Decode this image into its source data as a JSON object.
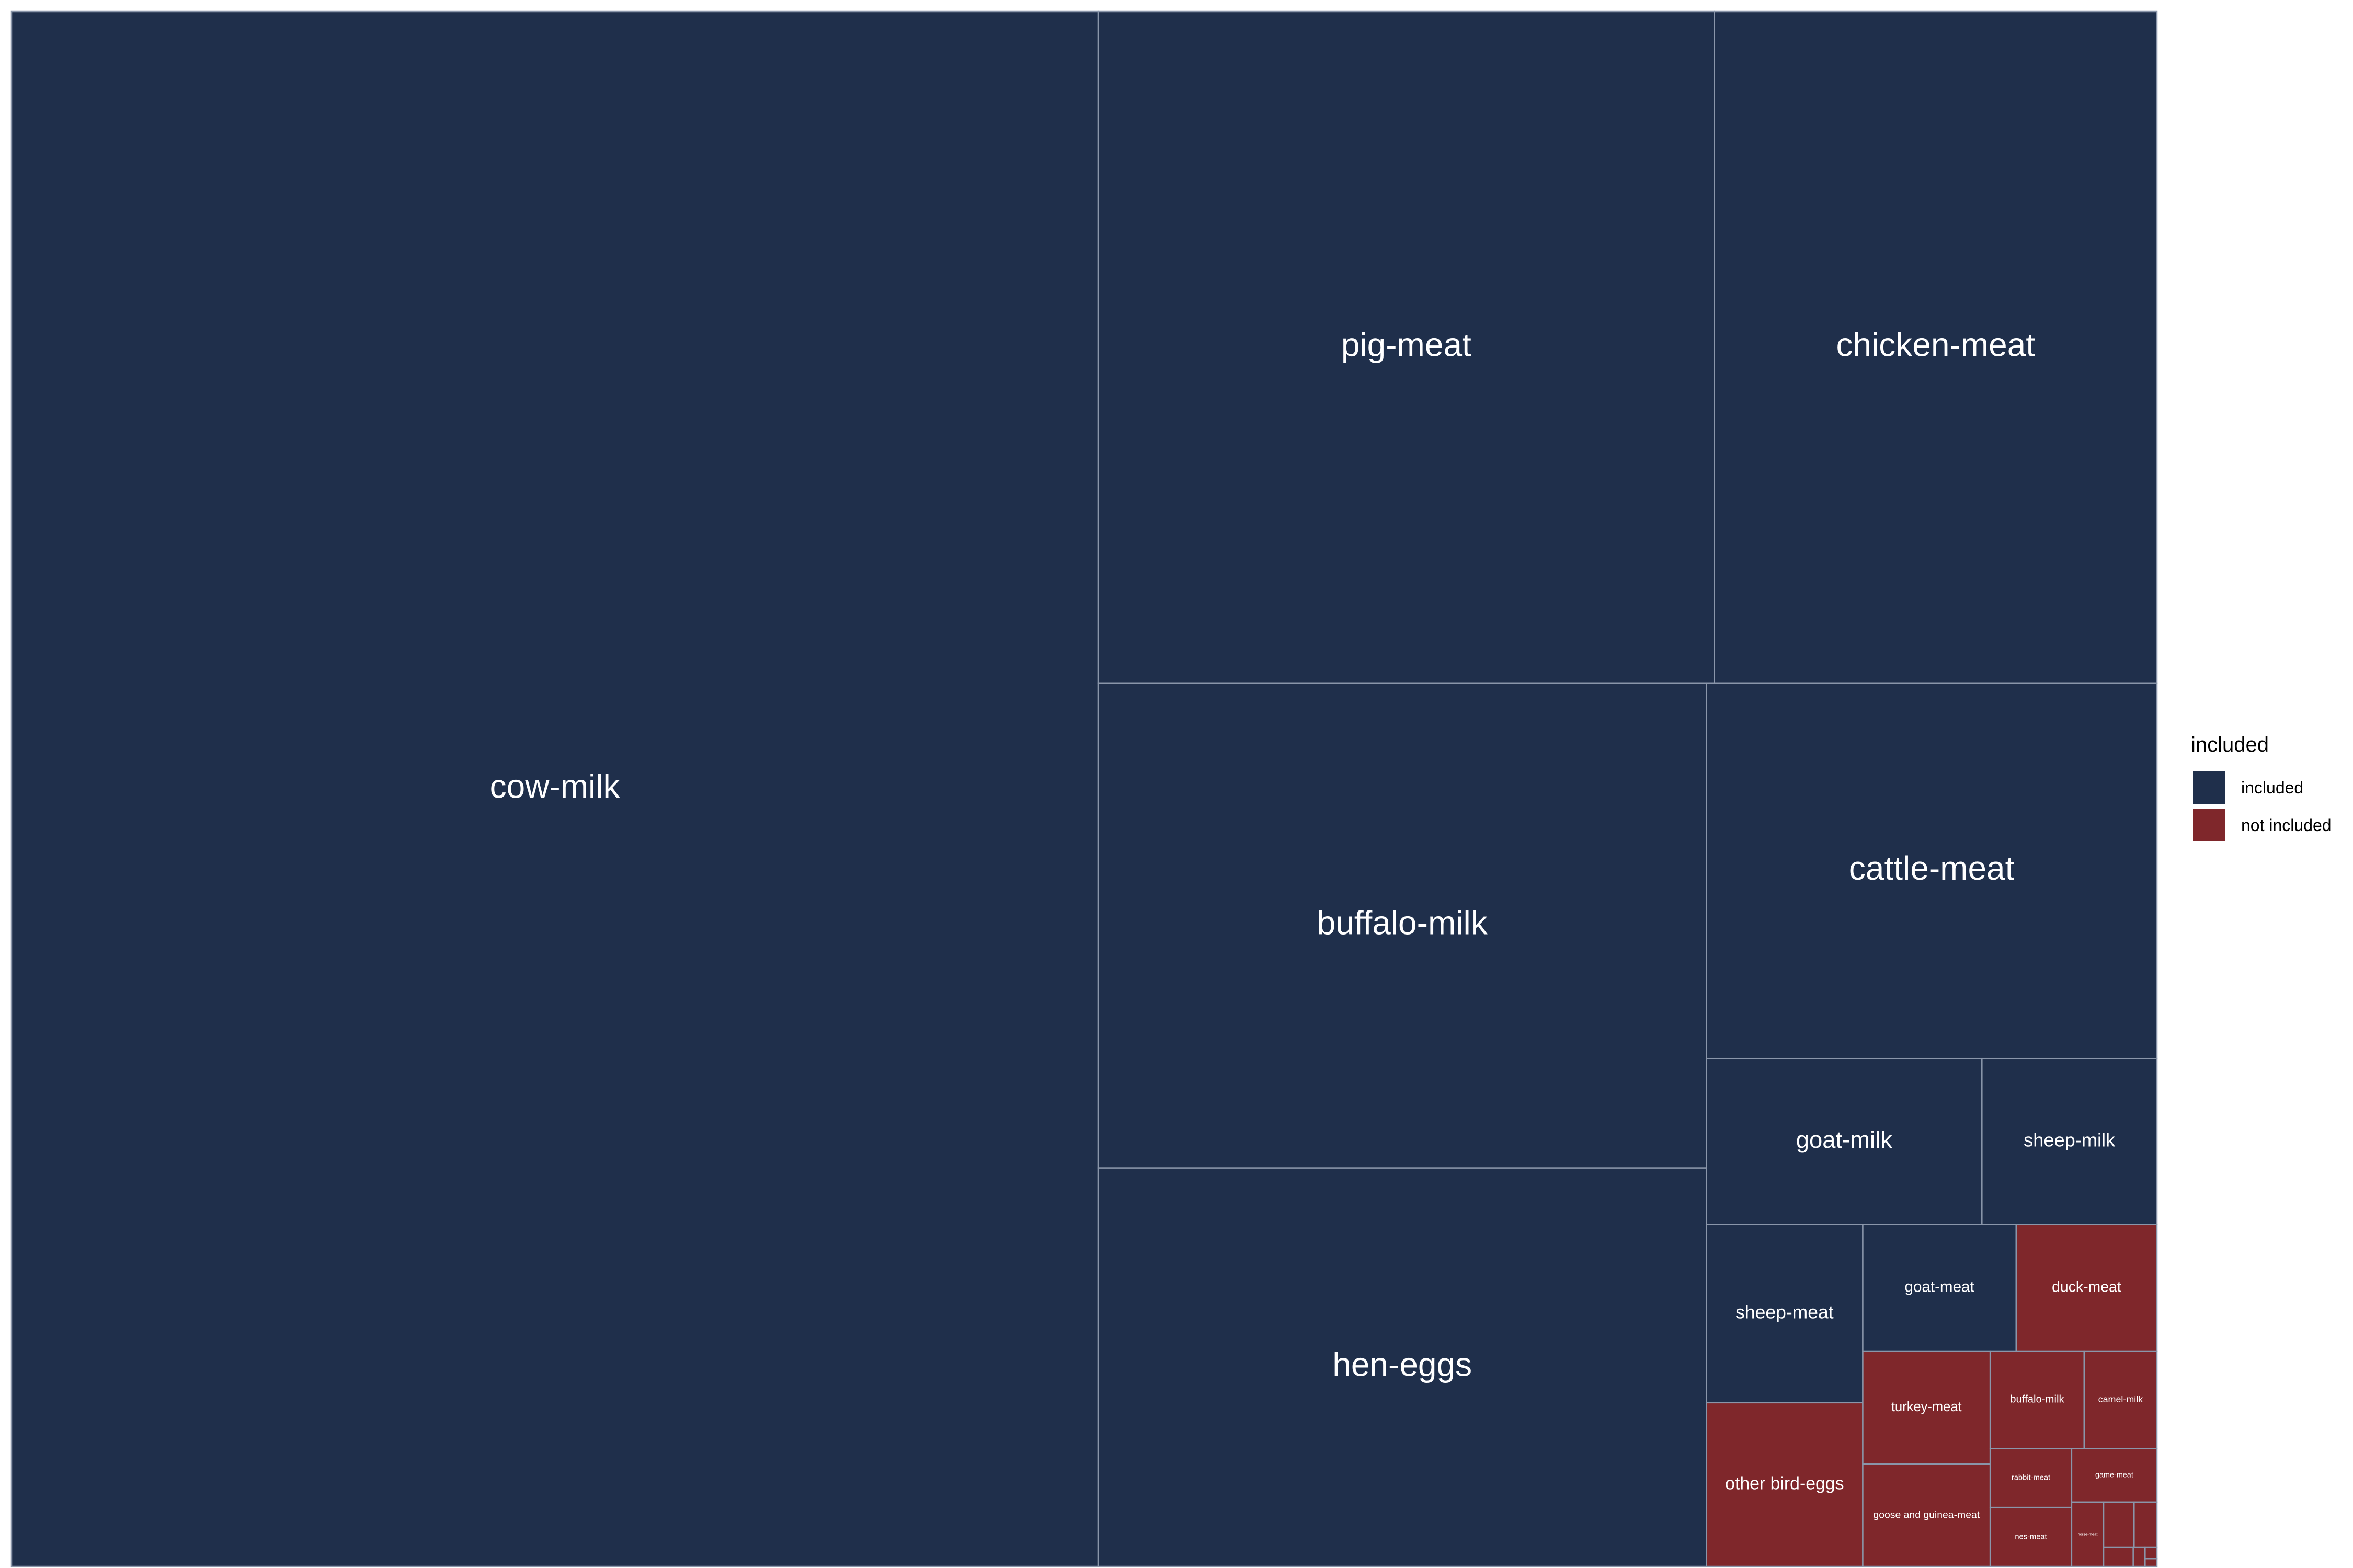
{
  "chart_data": {
    "type": "treemap",
    "title": "",
    "colors": {
      "included": "#1f2f4b",
      "not included": "#7f272b",
      "border": "#8a96aa"
    },
    "legend": {
      "title": "included",
      "placement": "right",
      "entries": [
        {
          "key": "included",
          "label": "included",
          "color": "#1f2f4b"
        },
        {
          "key": "not included",
          "label": "not included",
          "color": "#7f272b"
        }
      ]
    },
    "tiles": [
      {
        "label": "cow-milk",
        "group": "included",
        "value": 739
      },
      {
        "label": "pig-meat",
        "group": "included",
        "value": 181
      },
      {
        "label": "chicken-meat",
        "group": "included",
        "value": 130
      },
      {
        "label": "buffalo-milk",
        "group": "included",
        "value": 129
      },
      {
        "label": "hen-eggs",
        "group": "included",
        "value": 106
      },
      {
        "label": "cattle-meat",
        "group": "included",
        "value": 74
      },
      {
        "label": "goat-milk",
        "group": "included",
        "value": 20
      },
      {
        "label": "sheep-milk",
        "group": "included",
        "value": 12.7
      },
      {
        "label": "sheep-meat",
        "group": "included",
        "value": 12.2
      },
      {
        "label": "other bird-eggs",
        "group": "not included",
        "value": 11.2
      },
      {
        "label": "goat-meat",
        "group": "included",
        "value": 8.5
      },
      {
        "label": "duck-meat",
        "group": "not included",
        "value": 7.8
      },
      {
        "label": "turkey-meat",
        "group": "not included",
        "value": 6.3
      },
      {
        "label": "goose and guinea-meat",
        "group": "not included",
        "value": 5.7
      },
      {
        "label": "buffalo-milk",
        "group": "not included",
        "value": 4.0
      },
      {
        "label": "camel-milk",
        "group": "not included",
        "value": 3.1
      },
      {
        "label": "rabbit-meat",
        "group": "not included",
        "value": 2.1
      },
      {
        "label": "nes-meat",
        "group": "not included",
        "value": 2.1
      },
      {
        "label": "game-meat",
        "group": "not included",
        "value": 2.0
      },
      {
        "label": "horse-meat",
        "group": "not included",
        "value": 0.9
      },
      {
        "label": "",
        "group": "not included",
        "value": 0.6
      },
      {
        "label": "",
        "group": "not included",
        "value": 0.45
      },
      {
        "label": "",
        "group": "not included",
        "value": 0.25
      },
      {
        "label": "",
        "group": "not included",
        "value": 0.1
      },
      {
        "label": "",
        "group": "not included",
        "value": 0.06
      },
      {
        "label": "",
        "group": "not included",
        "value": 0.04
      }
    ]
  }
}
